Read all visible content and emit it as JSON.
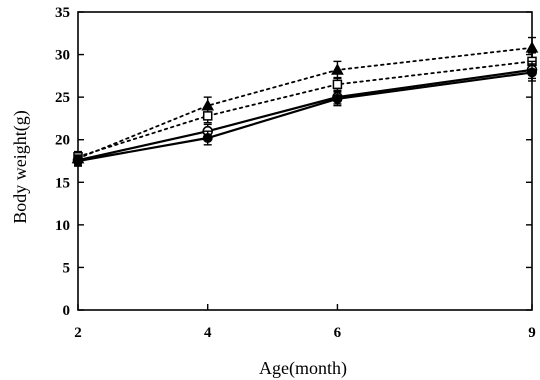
{
  "chart_data": {
    "type": "line",
    "title": "",
    "xlabel": "Age(month)",
    "ylabel": "Body weight(g)",
    "x": [
      2,
      4,
      6,
      9
    ],
    "xlim": [
      2,
      9
    ],
    "ylim": [
      0,
      35
    ],
    "xticks": [
      "2",
      "4",
      "6",
      "9"
    ],
    "yticks": [
      "0",
      "5",
      "10",
      "15",
      "20",
      "25",
      "30",
      "35"
    ],
    "grid": false,
    "legend": "none",
    "series": [
      {
        "values": [
          17.8,
          24.0,
          28.2,
          30.8
        ],
        "errors": [
          0.8,
          1.0,
          1.0,
          1.2
        ],
        "line": "dotted",
        "marker": "filled-triangle"
      },
      {
        "values": [
          18.0,
          22.8,
          26.5,
          29.2
        ],
        "errors": [
          0.6,
          0.8,
          0.8,
          1.0
        ],
        "line": "dotted",
        "marker": "open-square"
      },
      {
        "values": [
          17.6,
          21.0,
          25.0,
          28.2
        ],
        "errors": [
          0.6,
          0.8,
          0.8,
          1.0
        ],
        "line": "solid",
        "marker": "open-circle"
      },
      {
        "values": [
          17.5,
          20.2,
          24.8,
          27.9
        ],
        "errors": [
          0.6,
          0.8,
          0.8,
          1.0
        ],
        "line": "solid",
        "marker": "filled-circle"
      }
    ]
  }
}
